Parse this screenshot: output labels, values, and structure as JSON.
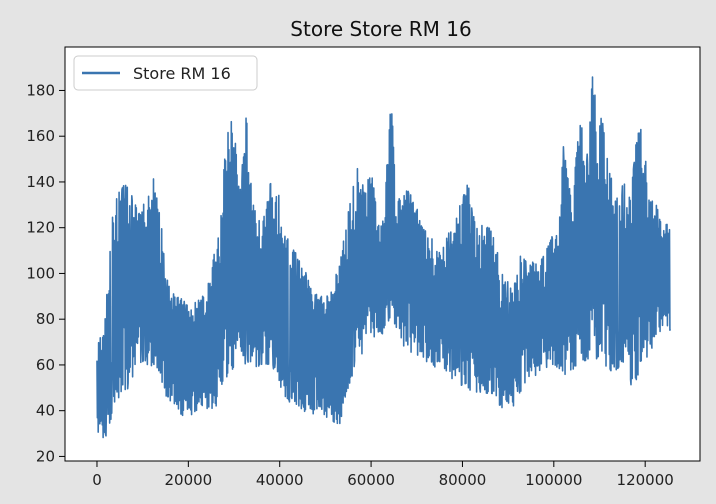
{
  "chart_data": {
    "type": "line",
    "title": "Store Store RM 16",
    "xlabel": "",
    "ylabel": "",
    "xlim": [
      -7000,
      132000
    ],
    "ylim": [
      18,
      199
    ],
    "x_ticks": [
      0,
      20000,
      40000,
      60000,
      80000,
      100000,
      120000
    ],
    "x_tick_labels": [
      "0",
      "20000",
      "40000",
      "60000",
      "80000",
      "100000",
      "120000"
    ],
    "y_ticks": [
      20,
      40,
      60,
      80,
      100,
      120,
      140,
      160,
      180
    ],
    "y_tick_labels": [
      "20",
      "40",
      "60",
      "80",
      "100",
      "120",
      "140",
      "160",
      "180"
    ],
    "grid": false,
    "legend": {
      "position": "top-left",
      "entries": [
        "Store RM 16"
      ]
    },
    "series": [
      {
        "name": "Store RM 16",
        "color": "#3a75b0",
        "x_range": [
          0,
          125500
        ],
        "upper_envelope": [
          [
            0,
            70
          ],
          [
            1500,
            75
          ],
          [
            2500,
            100
          ],
          [
            3500,
            128
          ],
          [
            5000,
            137
          ],
          [
            6500,
            144
          ],
          [
            8000,
            132
          ],
          [
            9500,
            128
          ],
          [
            11000,
            136
          ],
          [
            12500,
            143
          ],
          [
            14000,
            125
          ],
          [
            15000,
            99
          ],
          [
            16500,
            92
          ],
          [
            18000,
            90
          ],
          [
            20000,
            86
          ],
          [
            22000,
            88
          ],
          [
            24000,
            92
          ],
          [
            25500,
            108
          ],
          [
            27000,
            120
          ],
          [
            28500,
            174
          ],
          [
            30000,
            164
          ],
          [
            31500,
            135
          ],
          [
            32500,
            176
          ],
          [
            34000,
            132
          ],
          [
            36000,
            122
          ],
          [
            38000,
            140
          ],
          [
            39500,
            140
          ],
          [
            41000,
            118
          ],
          [
            43000,
            112
          ],
          [
            45000,
            104
          ],
          [
            47000,
            95
          ],
          [
            49000,
            90
          ],
          [
            51000,
            92
          ],
          [
            53000,
            104
          ],
          [
            55000,
            128
          ],
          [
            57000,
            147
          ],
          [
            58500,
            140
          ],
          [
            60000,
            145
          ],
          [
            62000,
            120
          ],
          [
            63000,
            130
          ],
          [
            64300,
            184
          ],
          [
            65500,
            130
          ],
          [
            67000,
            137
          ],
          [
            69000,
            137
          ],
          [
            71000,
            122
          ],
          [
            73000,
            117
          ],
          [
            75000,
            110
          ],
          [
            77000,
            118
          ],
          [
            79000,
            127
          ],
          [
            81000,
            142
          ],
          [
            83000,
            120
          ],
          [
            85000,
            125
          ],
          [
            87000,
            115
          ],
          [
            89000,
            100
          ],
          [
            91000,
            95
          ],
          [
            93000,
            110
          ],
          [
            95000,
            105
          ],
          [
            97000,
            105
          ],
          [
            99000,
            115
          ],
          [
            101000,
            120
          ],
          [
            102000,
            159
          ],
          [
            104000,
            130
          ],
          [
            106000,
            178
          ],
          [
            107500,
            150
          ],
          [
            108500,
            191
          ],
          [
            110000,
            170
          ],
          [
            111500,
            162
          ],
          [
            113000,
            135
          ],
          [
            115000,
            140
          ],
          [
            117000,
            140
          ],
          [
            118500,
            168
          ],
          [
            120000,
            155
          ],
          [
            121000,
            137
          ],
          [
            122500,
            130
          ],
          [
            124000,
            120
          ],
          [
            125500,
            126
          ]
        ],
        "lower_envelope": [
          [
            0,
            28
          ],
          [
            1500,
            27
          ],
          [
            2500,
            28
          ],
          [
            3500,
            43
          ],
          [
            5000,
            45
          ],
          [
            6500,
            48
          ],
          [
            8000,
            55
          ],
          [
            9500,
            60
          ],
          [
            11000,
            60
          ],
          [
            12500,
            58
          ],
          [
            14000,
            55
          ],
          [
            15000,
            45
          ],
          [
            16500,
            43
          ],
          [
            18000,
            38
          ],
          [
            20000,
            37
          ],
          [
            22000,
            40
          ],
          [
            24000,
            38
          ],
          [
            25500,
            36
          ],
          [
            27000,
            50
          ],
          [
            28500,
            55
          ],
          [
            30000,
            58
          ],
          [
            31500,
            65
          ],
          [
            32500,
            60
          ],
          [
            34000,
            60
          ],
          [
            36000,
            58
          ],
          [
            38000,
            60
          ],
          [
            39500,
            55
          ],
          [
            41000,
            45
          ],
          [
            43000,
            42
          ],
          [
            45000,
            40
          ],
          [
            47000,
            38
          ],
          [
            49000,
            40
          ],
          [
            51000,
            35
          ],
          [
            53000,
            32
          ],
          [
            55000,
            50
          ],
          [
            57000,
            60
          ],
          [
            58500,
            65
          ],
          [
            60000,
            70
          ],
          [
            62000,
            72
          ],
          [
            63000,
            75
          ],
          [
            64300,
            80
          ],
          [
            65500,
            75
          ],
          [
            67000,
            68
          ],
          [
            69000,
            65
          ],
          [
            71000,
            63
          ],
          [
            73000,
            60
          ],
          [
            75000,
            58
          ],
          [
            77000,
            55
          ],
          [
            79000,
            52
          ],
          [
            81000,
            48
          ],
          [
            83000,
            48
          ],
          [
            85000,
            47
          ],
          [
            87000,
            45
          ],
          [
            89000,
            40
          ],
          [
            91000,
            35
          ],
          [
            93000,
            50
          ],
          [
            95000,
            55
          ],
          [
            97000,
            55
          ],
          [
            99000,
            60
          ],
          [
            101000,
            58
          ],
          [
            102000,
            55
          ],
          [
            104000,
            57
          ],
          [
            106000,
            60
          ],
          [
            107500,
            62
          ],
          [
            108500,
            65
          ],
          [
            110000,
            60
          ],
          [
            111500,
            58
          ],
          [
            113000,
            57
          ],
          [
            115000,
            57
          ],
          [
            117000,
            50
          ],
          [
            118500,
            55
          ],
          [
            120000,
            60
          ],
          [
            121000,
            65
          ],
          [
            122500,
            72
          ],
          [
            124000,
            75
          ],
          [
            125500,
            75
          ]
        ]
      }
    ]
  }
}
